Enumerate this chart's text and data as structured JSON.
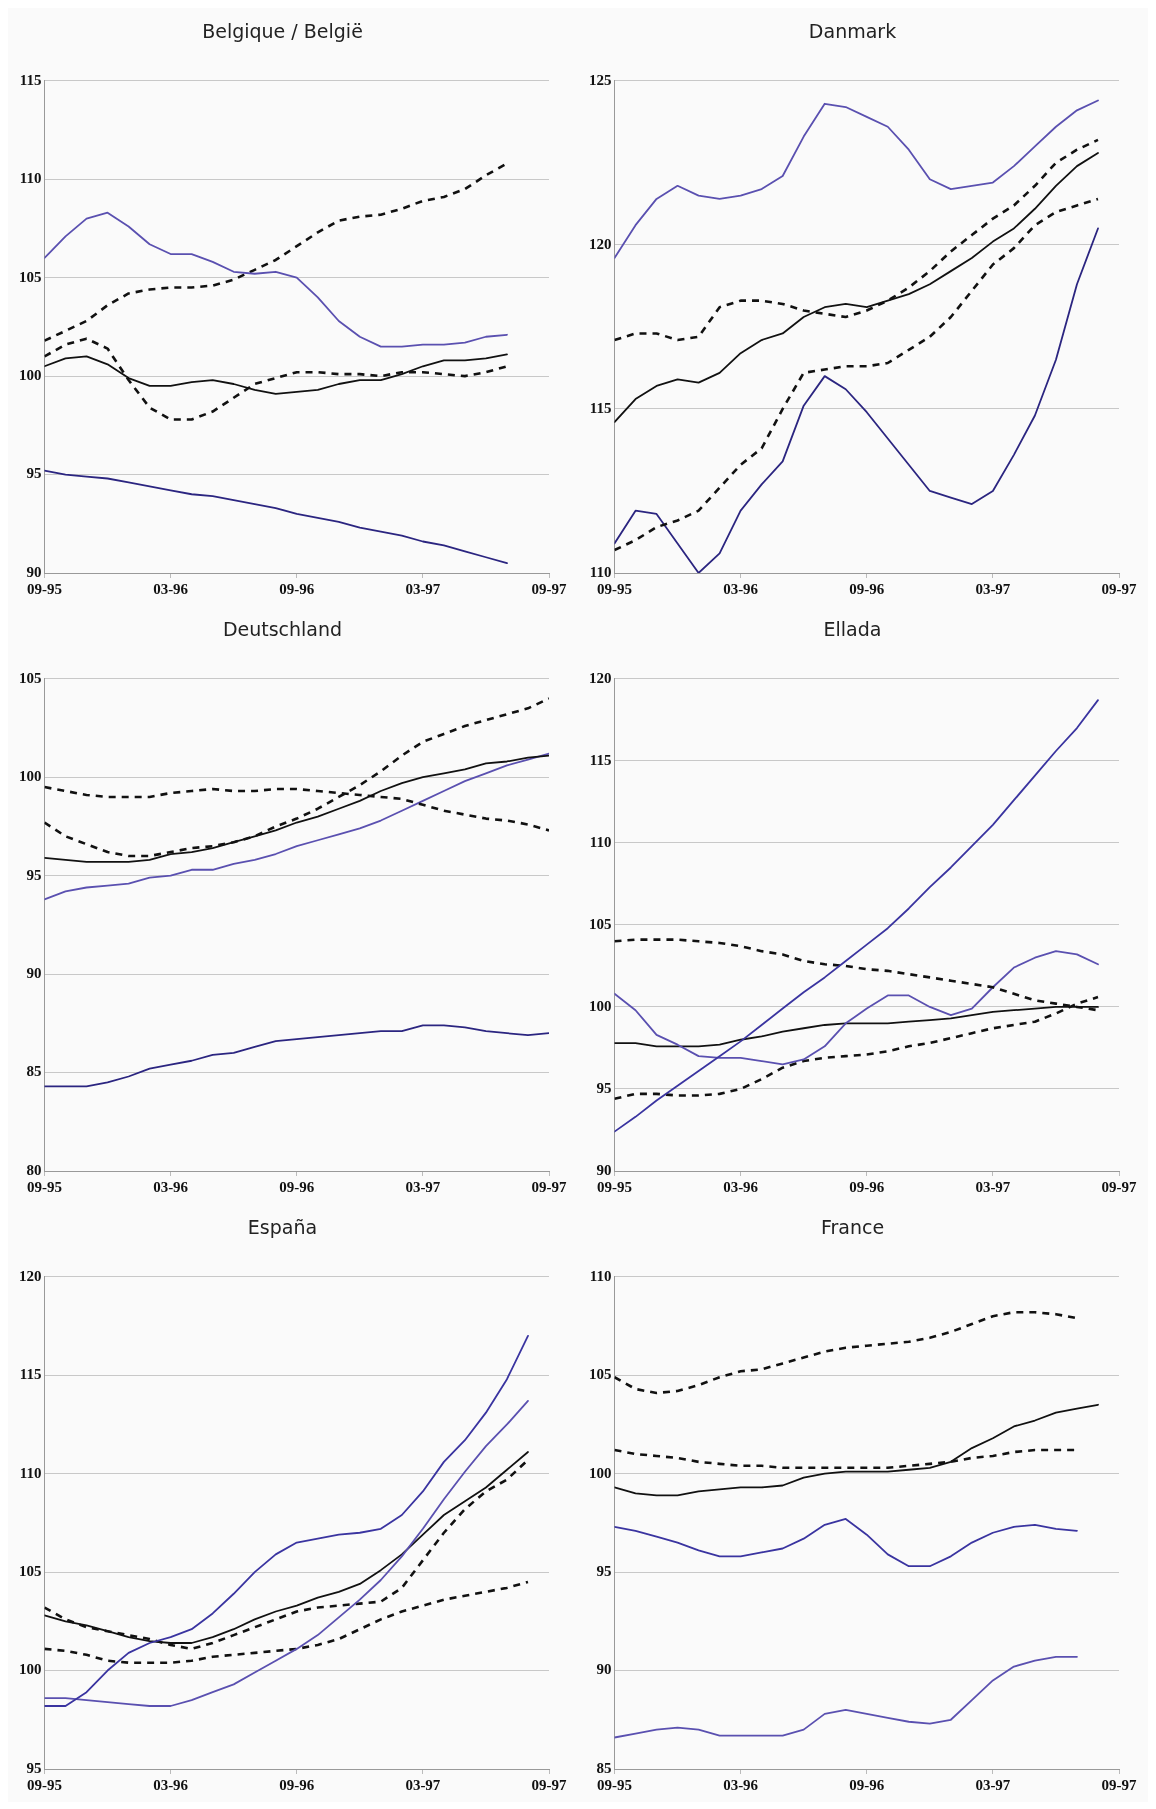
{
  "chart_data": [
    {
      "type": "line",
      "title": "Belgique / België",
      "grid": "y",
      "marker": "none",
      "xlim": [
        "1995-09",
        "1997-09"
      ],
      "ylim": [
        90,
        115
      ],
      "yticks": [
        90,
        95,
        100,
        105,
        110,
        115
      ],
      "xticks": [
        {
          "value": "1995-09",
          "label": "09-95"
        },
        {
          "value": "1996-03",
          "label": "03-96"
        },
        {
          "value": "1996-09",
          "label": "09-96"
        },
        {
          "value": "1997-03",
          "label": "03-97"
        },
        {
          "value": "1997-09",
          "label": "09-97"
        }
      ],
      "x": [
        "1995-09",
        "1995-10",
        "1995-11",
        "1995-12",
        "1996-01",
        "1996-02",
        "1996-03",
        "1996-04",
        "1996-05",
        "1996-06",
        "1996-07",
        "1996-08",
        "1996-09",
        "1996-10",
        "1996-11",
        "1996-12",
        "1997-01",
        "1997-02",
        "1997-03",
        "1997-04",
        "1997-05",
        "1997-06",
        "1997-07"
      ],
      "series": [
        {
          "color": "#5a50b0",
          "line_style": "solid",
          "values": [
            106.0,
            107.1,
            108.0,
            108.3,
            107.6,
            106.7,
            106.2,
            106.2,
            105.8,
            105.3,
            105.2,
            105.3,
            105.0,
            104.0,
            102.8,
            102.0,
            101.5,
            101.5,
            101.6,
            101.6,
            101.7,
            102.0,
            102.1
          ]
        },
        {
          "color": "#111111",
          "line_style": "dashed",
          "values": [
            101.8,
            102.3,
            102.8,
            103.6,
            104.2,
            104.4,
            104.5,
            104.5,
            104.6,
            104.9,
            105.4,
            105.9,
            106.6,
            107.3,
            107.9,
            108.1,
            108.2,
            108.5,
            108.9,
            109.1,
            109.5,
            110.2,
            110.8
          ]
        },
        {
          "color": "#111111",
          "line_style": "dashed",
          "values": [
            101.0,
            101.6,
            101.9,
            101.4,
            99.8,
            98.4,
            97.8,
            97.8,
            98.2,
            98.9,
            99.6,
            99.9,
            100.2,
            100.2,
            100.1,
            100.1,
            100.0,
            100.2,
            100.2,
            100.1,
            100.0,
            100.2,
            100.5
          ]
        },
        {
          "color": "#111111",
          "line_style": "solid",
          "values": [
            100.5,
            100.9,
            101.0,
            100.6,
            99.9,
            99.5,
            99.5,
            99.7,
            99.8,
            99.6,
            99.3,
            99.1,
            99.2,
            99.3,
            99.6,
            99.8,
            99.8,
            100.1,
            100.5,
            100.8,
            100.8,
            100.9,
            101.1
          ]
        },
        {
          "color": "#2b2580",
          "line_style": "solid",
          "values": [
            95.2,
            95.0,
            94.9,
            94.8,
            94.6,
            94.4,
            94.2,
            94.0,
            93.9,
            93.7,
            93.5,
            93.3,
            93.0,
            92.8,
            92.6,
            92.3,
            92.1,
            91.9,
            91.6,
            91.4,
            91.1,
            90.8,
            90.5
          ]
        }
      ]
    },
    {
      "type": "line",
      "title": "Danmark",
      "grid": "y",
      "marker": "none",
      "xlim": [
        "1995-09",
        "1997-09"
      ],
      "ylim": [
        110,
        125
      ],
      "yticks": [
        110,
        115,
        120,
        125
      ],
      "xticks": [
        {
          "value": "1995-09",
          "label": "09-95"
        },
        {
          "value": "1996-03",
          "label": "03-96"
        },
        {
          "value": "1996-09",
          "label": "09-96"
        },
        {
          "value": "1997-03",
          "label": "03-97"
        },
        {
          "value": "1997-09",
          "label": "09-97"
        }
      ],
      "x": [
        "1995-09",
        "1995-10",
        "1995-11",
        "1995-12",
        "1996-01",
        "1996-02",
        "1996-03",
        "1996-04",
        "1996-05",
        "1996-06",
        "1996-07",
        "1996-08",
        "1996-09",
        "1996-10",
        "1996-11",
        "1996-12",
        "1997-01",
        "1997-02",
        "1997-03",
        "1997-04",
        "1997-05",
        "1997-06",
        "1997-07",
        "1997-08"
      ],
      "series": [
        {
          "color": "#5a50b0",
          "line_style": "solid",
          "values": [
            119.6,
            120.6,
            121.4,
            121.8,
            121.5,
            121.4,
            121.5,
            121.7,
            122.1,
            123.3,
            124.3,
            124.2,
            123.9,
            123.6,
            122.9,
            122.0,
            121.7,
            121.8,
            121.9,
            122.4,
            123.0,
            123.6,
            124.1,
            124.4
          ]
        },
        {
          "color": "#111111",
          "line_style": "dashed",
          "values": [
            117.1,
            117.3,
            117.3,
            117.1,
            117.2,
            118.1,
            118.3,
            118.3,
            118.2,
            118.0,
            117.9,
            117.8,
            118.0,
            118.3,
            118.7,
            119.2,
            119.8,
            120.3,
            120.8,
            121.2,
            121.8,
            122.5,
            122.9,
            123.2
          ]
        },
        {
          "color": "#111111",
          "line_style": "solid",
          "values": [
            114.6,
            115.3,
            115.7,
            115.9,
            115.8,
            116.1,
            116.7,
            117.1,
            117.3,
            117.8,
            118.1,
            118.2,
            118.1,
            118.3,
            118.5,
            118.8,
            119.2,
            119.6,
            120.1,
            120.5,
            121.1,
            121.8,
            122.4,
            122.8
          ]
        },
        {
          "color": "#111111",
          "line_style": "dashed",
          "values": [
            110.7,
            111.0,
            111.4,
            111.6,
            111.9,
            112.6,
            113.3,
            113.8,
            115.0,
            116.1,
            116.2,
            116.3,
            116.3,
            116.4,
            116.8,
            117.2,
            117.8,
            118.6,
            119.4,
            119.9,
            120.6,
            121.0,
            121.2,
            121.4
          ]
        },
        {
          "color": "#2b2580",
          "line_style": "solid",
          "values": [
            110.9,
            111.9,
            111.8,
            110.9,
            110.0,
            110.6,
            111.9,
            112.7,
            113.4,
            115.1,
            116.0,
            115.6,
            114.9,
            114.1,
            113.3,
            112.5,
            112.3,
            112.1,
            112.5,
            113.6,
            114.8,
            116.5,
            118.8,
            120.5
          ]
        }
      ]
    },
    {
      "type": "line",
      "title": "Deutschland",
      "grid": "y",
      "marker": "none",
      "xlim": [
        "1995-09",
        "1997-09"
      ],
      "ylim": [
        80,
        105
      ],
      "yticks": [
        80,
        85,
        90,
        95,
        100,
        105
      ],
      "xticks": [
        {
          "value": "1995-09",
          "label": "09-95"
        },
        {
          "value": "1996-03",
          "label": "03-96"
        },
        {
          "value": "1996-09",
          "label": "09-96"
        },
        {
          "value": "1997-03",
          "label": "03-97"
        },
        {
          "value": "1997-09",
          "label": "09-97"
        }
      ],
      "x": [
        "1995-09",
        "1995-10",
        "1995-11",
        "1995-12",
        "1996-01",
        "1996-02",
        "1996-03",
        "1996-04",
        "1996-05",
        "1996-06",
        "1996-07",
        "1996-08",
        "1996-09",
        "1996-10",
        "1996-11",
        "1996-12",
        "1997-01",
        "1997-02",
        "1997-03",
        "1997-04",
        "1997-05",
        "1997-06",
        "1997-07",
        "1997-08",
        "1997-09"
      ],
      "series": [
        {
          "color": "#111111",
          "line_style": "dashed",
          "values": [
            97.7,
            97.0,
            96.6,
            96.2,
            96.0,
            96.0,
            96.2,
            96.4,
            96.5,
            96.7,
            97.0,
            97.5,
            97.9,
            98.4,
            99.0,
            99.6,
            100.3,
            101.1,
            101.8,
            102.2,
            102.6,
            102.9,
            103.2,
            103.5,
            104.0
          ]
        },
        {
          "color": "#111111",
          "line_style": "dashed",
          "values": [
            99.5,
            99.3,
            99.1,
            99.0,
            99.0,
            99.0,
            99.2,
            99.3,
            99.4,
            99.3,
            99.3,
            99.4,
            99.4,
            99.3,
            99.2,
            99.1,
            99.0,
            98.9,
            98.6,
            98.3,
            98.1,
            97.9,
            97.8,
            97.6,
            97.3
          ]
        },
        {
          "color": "#111111",
          "line_style": "solid",
          "values": [
            95.9,
            95.8,
            95.7,
            95.7,
            95.7,
            95.8,
            96.1,
            96.2,
            96.4,
            96.7,
            97.0,
            97.3,
            97.7,
            98.0,
            98.4,
            98.8,
            99.3,
            99.7,
            100.0,
            100.2,
            100.4,
            100.7,
            100.8,
            101.0,
            101.1
          ]
        },
        {
          "color": "#5a50b0",
          "line_style": "solid",
          "values": [
            93.8,
            94.2,
            94.4,
            94.5,
            94.6,
            94.9,
            95.0,
            95.3,
            95.3,
            95.6,
            95.8,
            96.1,
            96.5,
            96.8,
            97.1,
            97.4,
            97.8,
            98.3,
            98.8,
            99.3,
            99.8,
            100.2,
            100.6,
            100.9,
            101.2
          ]
        },
        {
          "color": "#2b2580",
          "line_style": "solid",
          "values": [
            84.3,
            84.3,
            84.3,
            84.5,
            84.8,
            85.2,
            85.4,
            85.6,
            85.9,
            86.0,
            86.3,
            86.6,
            86.7,
            86.8,
            86.9,
            87.0,
            87.1,
            87.1,
            87.4,
            87.4,
            87.3,
            87.1,
            87.0,
            86.9,
            87.0
          ]
        }
      ]
    },
    {
      "type": "line",
      "title": "Ellada",
      "grid": "y",
      "marker": "none",
      "xlim": [
        "1995-09",
        "1997-09"
      ],
      "ylim": [
        90,
        120
      ],
      "yticks": [
        90,
        95,
        100,
        105,
        110,
        115,
        120
      ],
      "xticks": [
        {
          "value": "1995-09",
          "label": "09-95"
        },
        {
          "value": "1996-03",
          "label": "03-96"
        },
        {
          "value": "1996-09",
          "label": "09-96"
        },
        {
          "value": "1997-03",
          "label": "03-97"
        },
        {
          "value": "1997-09",
          "label": "09-97"
        }
      ],
      "x": [
        "1995-09",
        "1995-10",
        "1995-11",
        "1995-12",
        "1996-01",
        "1996-02",
        "1996-03",
        "1996-04",
        "1996-05",
        "1996-06",
        "1996-07",
        "1996-08",
        "1996-09",
        "1996-10",
        "1996-11",
        "1996-12",
        "1997-01",
        "1997-02",
        "1997-03",
        "1997-04",
        "1997-05",
        "1997-06",
        "1997-07",
        "1997-08"
      ],
      "series": [
        {
          "color": "#3a34a0",
          "line_style": "solid",
          "values": [
            92.4,
            93.3,
            94.3,
            95.2,
            96.1,
            97.0,
            97.9,
            98.9,
            99.9,
            100.9,
            101.8,
            102.8,
            103.8,
            104.8,
            106.0,
            107.3,
            108.5,
            109.8,
            111.1,
            112.6,
            114.1,
            115.6,
            117.0,
            118.7
          ]
        },
        {
          "color": "#111111",
          "line_style": "dashed",
          "values": [
            104.0,
            104.1,
            104.1,
            104.1,
            104.0,
            103.9,
            103.7,
            103.4,
            103.2,
            102.8,
            102.6,
            102.5,
            102.3,
            102.2,
            102.0,
            101.8,
            101.6,
            101.4,
            101.2,
            100.8,
            100.4,
            100.2,
            100.0,
            99.8
          ]
        },
        {
          "color": "#5a50b0",
          "line_style": "solid",
          "values": [
            100.8,
            99.8,
            98.3,
            97.7,
            97.0,
            96.9,
            96.9,
            96.7,
            96.5,
            96.8,
            97.6,
            99.0,
            99.9,
            100.7,
            100.7,
            100.0,
            99.5,
            99.9,
            101.2,
            102.4,
            103.0,
            103.4,
            103.2,
            102.6
          ]
        },
        {
          "color": "#111111",
          "line_style": "solid",
          "values": [
            97.8,
            97.8,
            97.6,
            97.6,
            97.6,
            97.7,
            98.0,
            98.2,
            98.5,
            98.7,
            98.9,
            99.0,
            99.0,
            99.0,
            99.1,
            99.2,
            99.3,
            99.5,
            99.7,
            99.8,
            99.9,
            100.0,
            100.0,
            100.0
          ]
        },
        {
          "color": "#111111",
          "line_style": "dashed",
          "values": [
            94.4,
            94.7,
            94.7,
            94.6,
            94.6,
            94.7,
            95.0,
            95.6,
            96.3,
            96.7,
            96.9,
            97.0,
            97.1,
            97.3,
            97.6,
            97.8,
            98.1,
            98.4,
            98.7,
            98.9,
            99.1,
            99.6,
            100.2,
            100.6
          ]
        }
      ]
    },
    {
      "type": "line",
      "title": "España",
      "grid": "y",
      "marker": "none",
      "xlim": [
        "1995-09",
        "1997-09"
      ],
      "ylim": [
        95,
        120
      ],
      "yticks": [
        95,
        100,
        105,
        110,
        115,
        120
      ],
      "xticks": [
        {
          "value": "1995-09",
          "label": "09-95"
        },
        {
          "value": "1996-03",
          "label": "03-96"
        },
        {
          "value": "1996-09",
          "label": "09-96"
        },
        {
          "value": "1997-03",
          "label": "03-97"
        },
        {
          "value": "1997-09",
          "label": "09-97"
        }
      ],
      "x": [
        "1995-09",
        "1995-10",
        "1995-11",
        "1995-12",
        "1996-01",
        "1996-02",
        "1996-03",
        "1996-04",
        "1996-05",
        "1996-06",
        "1996-07",
        "1996-08",
        "1996-09",
        "1996-10",
        "1996-11",
        "1996-12",
        "1997-01",
        "1997-02",
        "1997-03",
        "1997-04",
        "1997-05",
        "1997-06",
        "1997-07",
        "1997-08"
      ],
      "series": [
        {
          "color": "#3a34a0",
          "line_style": "solid",
          "values": [
            98.2,
            98.2,
            98.9,
            100.0,
            100.9,
            101.4,
            101.7,
            102.1,
            102.9,
            103.9,
            105.0,
            105.9,
            106.5,
            106.7,
            106.9,
            107.0,
            107.2,
            107.9,
            109.1,
            110.6,
            111.7,
            113.1,
            114.8,
            117.0
          ]
        },
        {
          "color": "#5a50b0",
          "line_style": "solid",
          "values": [
            98.6,
            98.6,
            98.5,
            98.4,
            98.3,
            98.2,
            98.2,
            98.5,
            98.9,
            99.3,
            99.9,
            100.5,
            101.1,
            101.8,
            102.7,
            103.6,
            104.6,
            105.8,
            107.2,
            108.7,
            110.1,
            111.4,
            112.5,
            113.7
          ]
        },
        {
          "color": "#111111",
          "line_style": "solid",
          "values": [
            102.8,
            102.5,
            102.3,
            102.0,
            101.7,
            101.5,
            101.4,
            101.4,
            101.7,
            102.1,
            102.6,
            103.0,
            103.3,
            103.7,
            104.0,
            104.4,
            105.1,
            105.9,
            106.9,
            107.9,
            108.6,
            109.3,
            110.2,
            111.1
          ]
        },
        {
          "color": "#111111",
          "line_style": "dashed",
          "values": [
            103.2,
            102.6,
            102.2,
            102.0,
            101.8,
            101.6,
            101.3,
            101.1,
            101.4,
            101.8,
            102.2,
            102.6,
            103.0,
            103.2,
            103.3,
            103.4,
            103.5,
            104.2,
            105.6,
            107.0,
            108.2,
            109.1,
            109.7,
            110.7
          ]
        },
        {
          "color": "#111111",
          "line_style": "dashed",
          "values": [
            101.1,
            101.0,
            100.8,
            100.5,
            100.4,
            100.4,
            100.4,
            100.5,
            100.7,
            100.8,
            100.9,
            101.0,
            101.1,
            101.3,
            101.6,
            102.1,
            102.6,
            103.0,
            103.3,
            103.6,
            103.8,
            104.0,
            104.2,
            104.5
          ]
        }
      ]
    },
    {
      "type": "line",
      "title": "France",
      "grid": "y",
      "marker": "none",
      "xlim": [
        "1995-09",
        "1997-09"
      ],
      "ylim": [
        85,
        110
      ],
      "yticks": [
        85,
        90,
        95,
        100,
        105,
        110
      ],
      "xticks": [
        {
          "value": "1995-09",
          "label": "09-95"
        },
        {
          "value": "1996-03",
          "label": "03-96"
        },
        {
          "value": "1996-09",
          "label": "09-96"
        },
        {
          "value": "1997-03",
          "label": "03-97"
        },
        {
          "value": "1997-09",
          "label": "09-97"
        }
      ],
      "x": [
        "1995-09",
        "1995-10",
        "1995-11",
        "1995-12",
        "1996-01",
        "1996-02",
        "1996-03",
        "1996-04",
        "1996-05",
        "1996-06",
        "1996-07",
        "1996-08",
        "1996-09",
        "1996-10",
        "1996-11",
        "1996-12",
        "1997-01",
        "1997-02",
        "1997-03",
        "1997-04",
        "1997-05",
        "1997-06",
        "1997-07",
        "1997-08"
      ],
      "series": [
        {
          "color": "#111111",
          "line_style": "dashed",
          "values": [
            104.9,
            104.3,
            104.1,
            104.2,
            104.5,
            104.9,
            105.2,
            105.3,
            105.6,
            105.9,
            106.2,
            106.4,
            106.5,
            106.6,
            106.7,
            106.9,
            107.2,
            107.6,
            108.0,
            108.2,
            108.2,
            108.1,
            107.9,
            null
          ]
        },
        {
          "color": "#111111",
          "line_style": "dashed",
          "values": [
            101.2,
            101.0,
            100.9,
            100.8,
            100.6,
            100.5,
            100.4,
            100.4,
            100.3,
            100.3,
            100.3,
            100.3,
            100.3,
            100.3,
            100.4,
            100.5,
            100.6,
            100.8,
            100.9,
            101.1,
            101.2,
            101.2,
            101.2,
            null
          ]
        },
        {
          "color": "#111111",
          "line_style": "solid",
          "values": [
            99.3,
            99.0,
            98.9,
            98.9,
            99.1,
            99.2,
            99.3,
            99.3,
            99.4,
            99.8,
            100.0,
            100.1,
            100.1,
            100.1,
            100.2,
            100.3,
            100.6,
            101.3,
            101.8,
            102.4,
            102.7,
            103.1,
            103.3,
            103.5
          ]
        },
        {
          "color": "#3a34a0",
          "line_style": "solid",
          "values": [
            97.3,
            97.1,
            96.8,
            96.5,
            96.1,
            95.8,
            95.8,
            96.0,
            96.2,
            96.7,
            97.4,
            97.7,
            96.9,
            95.9,
            95.3,
            95.3,
            95.8,
            96.5,
            97.0,
            97.3,
            97.4,
            97.2,
            97.1,
            null
          ]
        },
        {
          "color": "#5a50b0",
          "line_style": "solid",
          "values": [
            86.6,
            86.8,
            87.0,
            87.1,
            87.0,
            86.7,
            86.7,
            86.7,
            86.7,
            87.0,
            87.8,
            88.0,
            87.8,
            87.6,
            87.4,
            87.3,
            87.5,
            88.5,
            89.5,
            90.2,
            90.5,
            90.7,
            90.7,
            null
          ]
        }
      ]
    }
  ]
}
